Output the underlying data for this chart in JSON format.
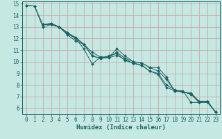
{
  "xlabel": "Humidex (Indice chaleur)",
  "xlim": [
    -0.5,
    23.5
  ],
  "ylim": [
    5.5,
    15.2
  ],
  "yticks": [
    6,
    7,
    8,
    9,
    10,
    11,
    12,
    13,
    14,
    15
  ],
  "xticks": [
    0,
    1,
    2,
    3,
    4,
    5,
    6,
    7,
    8,
    9,
    10,
    11,
    12,
    13,
    14,
    15,
    16,
    17,
    18,
    19,
    20,
    21,
    22,
    23
  ],
  "background_color": "#c5e8e3",
  "grid_color": "#c8a8a8",
  "line_color": "#1a6060",
  "lines": [
    {
      "x": [
        0,
        1,
        2,
        3,
        4,
        5,
        6,
        7,
        8,
        9,
        10,
        11,
        12,
        13,
        14,
        15,
        16,
        17,
        18,
        19,
        20,
        21,
        22,
        23
      ],
      "y": [
        14.85,
        14.8,
        13.2,
        13.2,
        13.0,
        12.5,
        12.0,
        11.1,
        9.8,
        10.4,
        10.4,
        11.1,
        10.5,
        10.0,
        9.9,
        9.5,
        9.5,
        8.7,
        7.5,
        7.5,
        6.5,
        6.5,
        6.55,
        5.65
      ]
    },
    {
      "x": [
        0,
        1,
        2,
        3,
        4,
        5,
        6,
        7,
        8,
        9,
        10,
        11,
        12,
        13,
        14,
        15,
        16,
        17,
        18,
        19,
        20,
        21,
        22,
        23
      ],
      "y": [
        14.85,
        14.8,
        13.0,
        13.2,
        13.0,
        12.3,
        11.8,
        11.5,
        10.5,
        10.3,
        10.5,
        10.7,
        10.1,
        9.9,
        9.7,
        9.2,
        9.0,
        8.0,
        7.6,
        7.4,
        7.25,
        6.5,
        6.5,
        5.65
      ]
    },
    {
      "x": [
        2,
        3,
        4,
        5,
        6,
        7,
        8,
        9,
        10,
        11,
        12,
        13,
        14,
        15,
        16,
        17,
        18,
        19,
        20,
        21,
        22,
        23
      ],
      "y": [
        13.2,
        13.3,
        13.0,
        12.5,
        12.1,
        11.5,
        10.8,
        10.4,
        10.4,
        10.8,
        10.3,
        10.0,
        9.9,
        9.5,
        9.2,
        8.5,
        7.5,
        7.4,
        7.3,
        6.6,
        6.6,
        5.65
      ]
    },
    {
      "x": [
        2,
        3,
        4,
        5,
        6,
        7,
        8,
        9,
        10,
        11,
        12,
        13,
        14,
        15,
        16,
        17,
        18,
        19,
        20,
        21,
        22,
        23
      ],
      "y": [
        13.2,
        13.3,
        13.0,
        12.4,
        12.0,
        11.5,
        10.5,
        10.3,
        10.35,
        10.55,
        10.2,
        9.85,
        9.7,
        9.2,
        8.9,
        7.8,
        7.5,
        7.4,
        7.2,
        6.5,
        6.6,
        5.65
      ]
    }
  ],
  "tick_fontsize": 5.5,
  "label_fontsize": 6.5,
  "markersize": 2.0
}
